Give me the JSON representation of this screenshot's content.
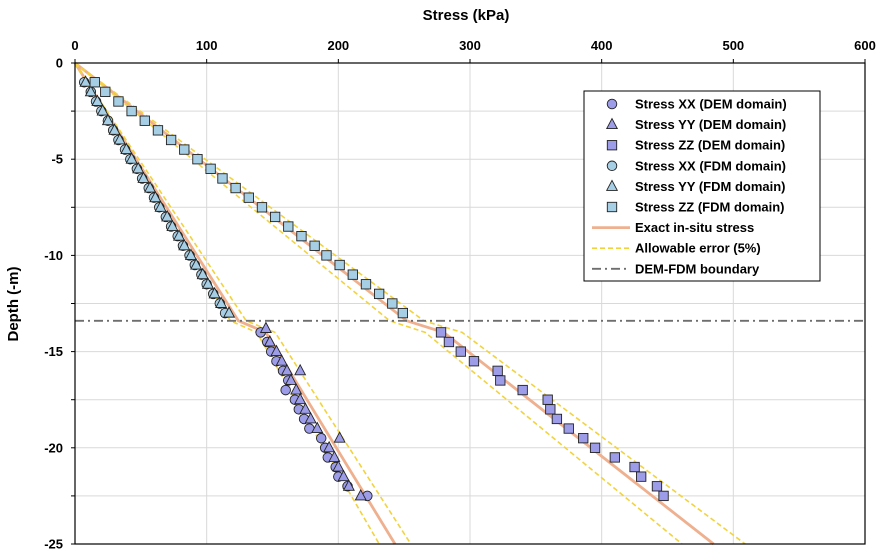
{
  "chart_data": {
    "type": "scatter",
    "xlabel": "Stress (kPa)",
    "ylabel": "Depth (-m)",
    "xlim": [
      0,
      600
    ],
    "ylim": [
      -25,
      0
    ],
    "xticks": [
      "0",
      "100",
      "200",
      "300",
      "400",
      "500",
      "600"
    ],
    "yticks": [
      "0",
      "-5",
      "-10",
      "-15",
      "-20",
      "-25"
    ],
    "grid": true,
    "legend_position": "top-right",
    "colors": {
      "dem": "#9c9ce8",
      "fdm": "#a6cfe6",
      "exact": "#eeb08e",
      "allowable": "#f2d33e",
      "boundary": "#6e6e6e"
    },
    "series": [
      {
        "name": "Stress XX (DEM domain)",
        "marker": "circle",
        "domain": "dem",
        "points": [
          [
            141,
            -14
          ],
          [
            146,
            -14.5
          ],
          [
            149,
            -15
          ],
          [
            153,
            -15.5
          ],
          [
            158,
            -16
          ],
          [
            162,
            -16.5
          ],
          [
            160,
            -17
          ],
          [
            167,
            -17.5
          ],
          [
            170,
            -18
          ],
          [
            174,
            -18.5
          ],
          [
            178,
            -19
          ],
          [
            187,
            -19.5
          ],
          [
            190,
            -20
          ],
          [
            192,
            -20.5
          ],
          [
            198,
            -21
          ],
          [
            200,
            -21.5
          ],
          [
            207,
            -22
          ],
          [
            222,
            -22.5
          ]
        ]
      },
      {
        "name": "Stress YY (DEM domain)",
        "marker": "triangle",
        "domain": "dem",
        "points": [
          [
            145,
            -13.8
          ],
          [
            148,
            -14.5
          ],
          [
            153,
            -15
          ],
          [
            157,
            -15.5
          ],
          [
            161,
            -16
          ],
          [
            171,
            -16
          ],
          [
            164,
            -16.5
          ],
          [
            168,
            -17
          ],
          [
            171,
            -17.5
          ],
          [
            175,
            -18
          ],
          [
            179,
            -18.5
          ],
          [
            184,
            -19
          ],
          [
            201,
            -19.5
          ],
          [
            193,
            -20
          ],
          [
            197,
            -20.5
          ],
          [
            200,
            -21
          ],
          [
            204,
            -21.5
          ],
          [
            208,
            -22
          ],
          [
            217,
            -22.5
          ]
        ]
      },
      {
        "name": "Stress ZZ (DEM domain)",
        "marker": "square",
        "domain": "dem",
        "points": [
          [
            278,
            -14
          ],
          [
            284,
            -14.5
          ],
          [
            293,
            -15
          ],
          [
            303,
            -15.5
          ],
          [
            321,
            -16
          ],
          [
            323,
            -16.5
          ],
          [
            340,
            -17
          ],
          [
            359,
            -17.5
          ],
          [
            361,
            -18
          ],
          [
            366,
            -18.5
          ],
          [
            375,
            -19
          ],
          [
            386,
            -19.5
          ],
          [
            395,
            -20
          ],
          [
            410,
            -20.5
          ],
          [
            425,
            -21
          ],
          [
            430,
            -21.5
          ],
          [
            442,
            -22
          ],
          [
            447,
            -22.5
          ]
        ]
      },
      {
        "name": "Stress XX (FDM domain)",
        "marker": "circle",
        "domain": "fdm",
        "points": [
          [
            7,
            -1
          ],
          [
            12,
            -1.5
          ],
          [
            16,
            -2
          ],
          [
            20,
            -2.5
          ],
          [
            25,
            -3
          ],
          [
            29,
            -3.5
          ],
          [
            33,
            -4
          ],
          [
            38,
            -4.5
          ],
          [
            42,
            -5
          ],
          [
            47,
            -5.5
          ],
          [
            51,
            -6
          ],
          [
            56,
            -6.5
          ],
          [
            60,
            -7
          ],
          [
            64,
            -7.5
          ],
          [
            69,
            -8
          ],
          [
            73,
            -8.5
          ],
          [
            78,
            -9
          ],
          [
            82,
            -9.5
          ],
          [
            87,
            -10
          ],
          [
            91,
            -10.5
          ],
          [
            96,
            -11
          ],
          [
            100,
            -11.5
          ],
          [
            105,
            -12
          ],
          [
            110,
            -12.5
          ],
          [
            114,
            -13
          ]
        ]
      },
      {
        "name": "Stress YY (FDM domain)",
        "marker": "triangle",
        "domain": "fdm",
        "points": [
          [
            8,
            -1
          ],
          [
            12,
            -1.5
          ],
          [
            17,
            -2
          ],
          [
            21,
            -2.5
          ],
          [
            25,
            -3
          ],
          [
            30,
            -3.5
          ],
          [
            34,
            -4
          ],
          [
            39,
            -4.5
          ],
          [
            43,
            -5
          ],
          [
            48,
            -5.5
          ],
          [
            52,
            -6
          ],
          [
            57,
            -6.5
          ],
          [
            61,
            -7
          ],
          [
            65,
            -7.5
          ],
          [
            70,
            -8
          ],
          [
            74,
            -8.5
          ],
          [
            79,
            -9
          ],
          [
            83,
            -9.5
          ],
          [
            88,
            -10
          ],
          [
            92,
            -10.5
          ],
          [
            97,
            -11
          ],
          [
            101,
            -11.5
          ],
          [
            106,
            -12
          ],
          [
            111,
            -12.5
          ],
          [
            117,
            -13
          ]
        ]
      },
      {
        "name": "Stress ZZ (FDM domain)",
        "marker": "square",
        "domain": "fdm",
        "points": [
          [
            15,
            -1
          ],
          [
            23,
            -1.5
          ],
          [
            33,
            -2
          ],
          [
            43,
            -2.5
          ],
          [
            53,
            -3
          ],
          [
            63,
            -3.5
          ],
          [
            73,
            -4
          ],
          [
            83,
            -4.5
          ],
          [
            93,
            -5
          ],
          [
            103,
            -5.5
          ],
          [
            112,
            -6
          ],
          [
            122,
            -6.5
          ],
          [
            132,
            -7
          ],
          [
            142,
            -7.5
          ],
          [
            152,
            -8
          ],
          [
            162,
            -8.5
          ],
          [
            172,
            -9
          ],
          [
            182,
            -9.5
          ],
          [
            191,
            -10
          ],
          [
            201,
            -10.5
          ],
          [
            211,
            -11
          ],
          [
            221,
            -11.5
          ],
          [
            231,
            -12
          ],
          [
            241,
            -12.5
          ],
          [
            249,
            -13
          ]
        ]
      },
      {
        "name": "Exact in-situ stress",
        "style": "line",
        "color": "exact",
        "lines": [
          [
            [
              0,
              0
            ],
            [
              124,
              -13.4
            ],
            [
              145,
              -14
            ],
            [
              243,
              -25
            ]
          ],
          [
            [
              0,
              0
            ],
            [
              252,
              -13.4
            ],
            [
              280,
              -14
            ],
            [
              485,
              -25
            ]
          ]
        ]
      },
      {
        "name": "Allowable error (5%)",
        "style": "dashed",
        "color": "allowable",
        "lines": [
          [
            [
              0,
              0
            ],
            [
              118,
              -13.4
            ],
            [
              138,
              -14
            ],
            [
              231,
              -25
            ]
          ],
          [
            [
              0,
              0
            ],
            [
              130,
              -13.4
            ],
            [
              152,
              -14
            ],
            [
              255,
              -25
            ]
          ],
          [
            [
              0,
              0
            ],
            [
              239,
              -13.4
            ],
            [
              266,
              -14
            ],
            [
              461,
              -25
            ]
          ],
          [
            [
              0,
              0
            ],
            [
              265,
              -13.4
            ],
            [
              294,
              -14
            ],
            [
              509,
              -25
            ]
          ]
        ]
      },
      {
        "name": "DEM-FDM boundary",
        "style": "dashdot",
        "color": "boundary",
        "y": -13.4
      }
    ]
  }
}
